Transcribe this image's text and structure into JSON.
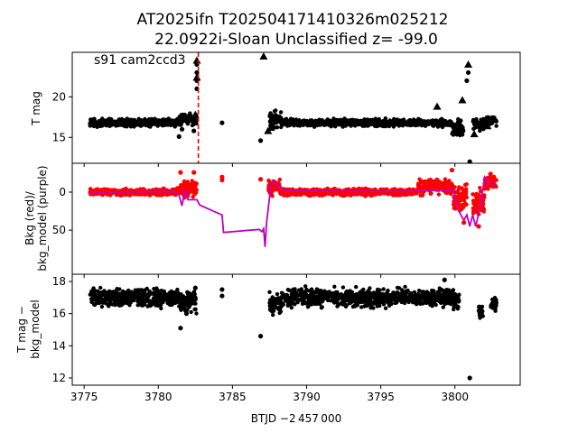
{
  "chart_data": {
    "type": "scatter",
    "title_line1": "AT2025ifn  T202504171410326m025212",
    "title_line2": "22.0922i-Sloan Unclassified z= -99.0",
    "xlabel": "BTJD −2 457 000",
    "xlim": [
      3774.2,
      3804.4
    ],
    "xticks": [
      3775,
      3780,
      3785,
      3790,
      3795,
      3800
    ],
    "panels": [
      {
        "name": "tmag",
        "ylabel": "T mag",
        "ylim": [
          25.5,
          11.8
        ],
        "yticks": [
          15,
          20
        ],
        "annotation": "s91 cam2ccd3",
        "vline_x": 3782.7,
        "vline_color": "#ff0000",
        "segments": [
          {
            "x0": 3775.4,
            "x1": 3781.4,
            "center": 16.8,
            "spread": 0.6,
            "color": "#000000"
          },
          {
            "x0": 3781.4,
            "x1": 3782.6,
            "center": 17.2,
            "spread": 1.0,
            "color": "#000000"
          },
          {
            "x0": 3787.5,
            "x1": 3788.3,
            "center": 17.3,
            "spread": 1.6,
            "color": "#000000"
          },
          {
            "x0": 3788.3,
            "x1": 3799.8,
            "center": 16.8,
            "spread": 0.6,
            "color": "#000000"
          },
          {
            "x0": 3799.8,
            "x1": 3800.6,
            "center": 16.2,
            "spread": 1.4,
            "color": "#000000"
          },
          {
            "x0": 3801.2,
            "x1": 3802.0,
            "center": 16.7,
            "spread": 1.2,
            "color": "#000000"
          },
          {
            "x0": 3802.0,
            "x1": 3802.8,
            "center": 17.0,
            "spread": 0.8,
            "color": "#000000"
          }
        ],
        "points": [
          {
            "x": 3781.4,
            "y": 15.1
          },
          {
            "x": 3781.6,
            "y": 16.0
          },
          {
            "x": 3782.4,
            "y": 15.8
          },
          {
            "x": 3784.3,
            "y": 16.8
          },
          {
            "x": 3786.9,
            "y": 14.6
          },
          {
            "x": 3801.0,
            "y": 12.0
          },
          {
            "x": 3782.6,
            "y": 21.0
          },
          {
            "x": 3782.6,
            "y": 22.0
          },
          {
            "x": 3782.6,
            "y": 23.0
          },
          {
            "x": 3782.6,
            "y": 24.0
          },
          {
            "x": 3800.8,
            "y": 22.0
          },
          {
            "x": 3800.9,
            "y": 23.0
          }
        ],
        "triangles": [
          {
            "x": 3787.1,
            "y": 25.0
          },
          {
            "x": 3798.8,
            "y": 18.8
          },
          {
            "x": 3800.5,
            "y": 19.6
          },
          {
            "x": 3782.6,
            "y": 24.5
          },
          {
            "x": 3800.9,
            "y": 24.0
          },
          {
            "x": 3787.4,
            "y": 15.8
          },
          {
            "x": 3787.6,
            "y": 16.2
          },
          {
            "x": 3801.3,
            "y": 15.4
          },
          {
            "x": 3800.2,
            "y": 15.8
          },
          {
            "x": 3802.2,
            "y": 16.4
          },
          {
            "x": 3782.5,
            "y": 17.8
          },
          {
            "x": 3782.6,
            "y": 22.4
          }
        ]
      },
      {
        "name": "bkg",
        "ylabel_line1": "Bkg (red)/",
        "ylabel_line2": "bkg_model (purple)",
        "ylim": [
          -38,
          108
        ],
        "yticks": [
          0,
          50
        ],
        "segments": [
          {
            "x0": 3775.4,
            "x1": 3781.4,
            "center": 0,
            "spread": 6,
            "color": "#ff0000"
          },
          {
            "x0": 3781.4,
            "x1": 3782.6,
            "center": -4,
            "spread": 14,
            "color": "#ff0000"
          },
          {
            "x0": 3787.4,
            "x1": 3788.2,
            "center": -6,
            "spread": 14,
            "color": "#ff0000"
          },
          {
            "x0": 3788.2,
            "x1": 3797.5,
            "center": 0,
            "spread": 6,
            "color": "#ff0000"
          },
          {
            "x0": 3797.5,
            "x1": 3799.9,
            "center": -7,
            "spread": 14,
            "color": "#ff0000"
          },
          {
            "x0": 3799.9,
            "x1": 3800.8,
            "center": 8,
            "spread": 28,
            "color": "#ff0000"
          },
          {
            "x0": 3801.2,
            "x1": 3802.0,
            "center": 12,
            "spread": 30,
            "color": "#ff0000"
          },
          {
            "x0": 3802.0,
            "x1": 3802.8,
            "center": -12,
            "spread": 12,
            "color": "#ff0000"
          }
        ],
        "points": [
          {
            "x": 3784.3,
            "y": -16
          },
          {
            "x": 3784.3,
            "y": -20
          },
          {
            "x": 3786.9,
            "y": -17
          },
          {
            "x": 3781.5,
            "y": -26
          },
          {
            "x": 3782.4,
            "y": -26
          },
          {
            "x": 3799.8,
            "y": -29
          },
          {
            "x": 3800.6,
            "y": 40
          },
          {
            "x": 3801.6,
            "y": 45
          },
          {
            "x": 3802.4,
            "y": -24
          }
        ],
        "model_line": [
          [
            3775.4,
            0
          ],
          [
            3781.0,
            -1
          ],
          [
            3781.4,
            4
          ],
          [
            3781.6,
            18
          ],
          [
            3781.8,
            -4
          ],
          [
            3782.0,
            10
          ],
          [
            3782.6,
            10
          ],
          [
            3782.8,
            17
          ],
          [
            3784.3,
            30
          ],
          [
            3784.4,
            53
          ],
          [
            3786.8,
            49
          ],
          [
            3787.0,
            52
          ],
          [
            3787.1,
            48
          ],
          [
            3787.2,
            72
          ],
          [
            3787.3,
            40
          ],
          [
            3787.6,
            -10
          ],
          [
            3787.9,
            -15
          ],
          [
            3788.2,
            -5
          ],
          [
            3788.6,
            -2
          ],
          [
            3792.0,
            -1
          ],
          [
            3797.0,
            -1
          ],
          [
            3799.2,
            -3
          ],
          [
            3799.9,
            -2
          ],
          [
            3800.2,
            22
          ],
          [
            3800.4,
            30
          ],
          [
            3800.6,
            37
          ],
          [
            3800.8,
            30
          ],
          [
            3801.0,
            45
          ],
          [
            3801.2,
            30
          ],
          [
            3801.4,
            45
          ],
          [
            3801.7,
            20
          ],
          [
            3802.0,
            -20
          ],
          [
            3802.3,
            -12
          ],
          [
            3802.8,
            -10
          ]
        ]
      },
      {
        "name": "diff",
        "ylabel_line1": "T mag −",
        "ylabel_line2": "bkg_model",
        "ylim": [
          18.45,
          11.55
        ],
        "yticks": [
          12,
          14,
          16,
          18
        ],
        "segments": [
          {
            "x0": 3775.4,
            "x1": 3781.4,
            "center": 17.0,
            "spread": 0.75,
            "color": "#000000"
          },
          {
            "x0": 3781.4,
            "x1": 3782.6,
            "center": 16.7,
            "spread": 0.9,
            "color": "#000000"
          },
          {
            "x0": 3787.5,
            "x1": 3788.3,
            "center": 16.6,
            "spread": 0.9,
            "color": "#000000"
          },
          {
            "x0": 3788.3,
            "x1": 3799.9,
            "center": 17.0,
            "spread": 0.75,
            "color": "#000000"
          },
          {
            "x0": 3799.9,
            "x1": 3800.3,
            "center": 16.8,
            "spread": 0.8,
            "color": "#000000"
          },
          {
            "x0": 3801.6,
            "x1": 3801.9,
            "center": 16.1,
            "spread": 0.6,
            "color": "#000000"
          },
          {
            "x0": 3802.4,
            "x1": 3802.8,
            "center": 16.6,
            "spread": 0.6,
            "color": "#000000"
          }
        ],
        "points": [
          {
            "x": 3781.5,
            "y": 15.1
          },
          {
            "x": 3781.9,
            "y": 16.0
          },
          {
            "x": 3784.3,
            "y": 17.1
          },
          {
            "x": 3784.3,
            "y": 17.5
          },
          {
            "x": 3786.9,
            "y": 14.6
          },
          {
            "x": 3801.0,
            "y": 12.0
          },
          {
            "x": 3782.5,
            "y": 17.6
          },
          {
            "x": 3799.3,
            "y": 18.1
          }
        ]
      }
    ]
  }
}
